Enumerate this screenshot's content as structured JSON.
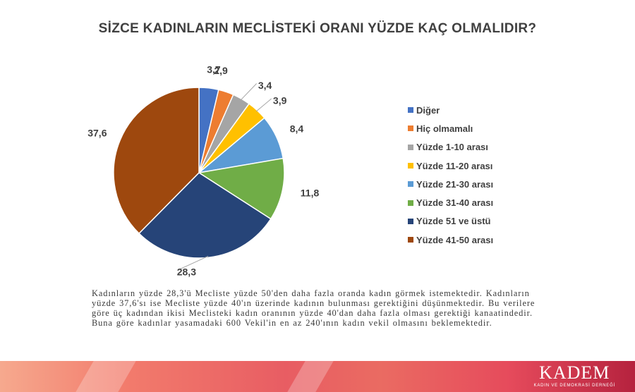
{
  "chart_data": {
    "type": "pie",
    "title": "SİZCE KADINLARIN MECLİSTEKİ ORANI YÜZDE KAÇ OLMALIDIR?",
    "slices": [
      {
        "label": "Diğer",
        "value": 3.7,
        "value_label": "3,7",
        "color": "#4472c4"
      },
      {
        "label": "Hiç olmamalı",
        "value": 2.9,
        "value_label": "2,9",
        "color": "#ed7d31"
      },
      {
        "label": "Yüzde 1-10 arası",
        "value": 3.4,
        "value_label": "3,4",
        "color": "#a5a5a5"
      },
      {
        "label": "Yüzde 11-20 arası",
        "value": 3.9,
        "value_label": "3,9",
        "color": "#ffc000"
      },
      {
        "label": "Yüzde 21-30 arası",
        "value": 8.4,
        "value_label": "8,4",
        "color": "#5b9bd5"
      },
      {
        "label": "Yüzde 31-40 arası",
        "value": 11.8,
        "value_label": "11,8",
        "color": "#70ad47"
      },
      {
        "label": "Yüzde 51 ve üstü",
        "value": 28.3,
        "value_label": "28,3",
        "color": "#264478"
      },
      {
        "label": "Yüzde 41-50 arası",
        "value": 37.6,
        "value_label": "37,6",
        "color": "#9e480e"
      }
    ],
    "legend_position": "right"
  },
  "caption": "Kadınların yüzde 28,3'ü Mecliste yüzde 50'den daha fazla oranda kadın görmek istemektedir. Kadınların yüzde 37,6'sı ise Mecliste yüzde 40'ın üzerinde kadının bulunması gerektiğini düşünmektedir. Bu verilere göre üç kadından ikisi Meclisteki kadın oranının yüzde 40'dan daha fazla olması gerektiği kanaatindedir. Buna göre kadınlar yasamadaki 600 Vekil'in en az 240'ının kadın vekil olmasını beklemektedir.",
  "brand": {
    "name": "KADEM",
    "subtitle": "KADIN VE DEMOKRASİ DERNEĞİ"
  }
}
